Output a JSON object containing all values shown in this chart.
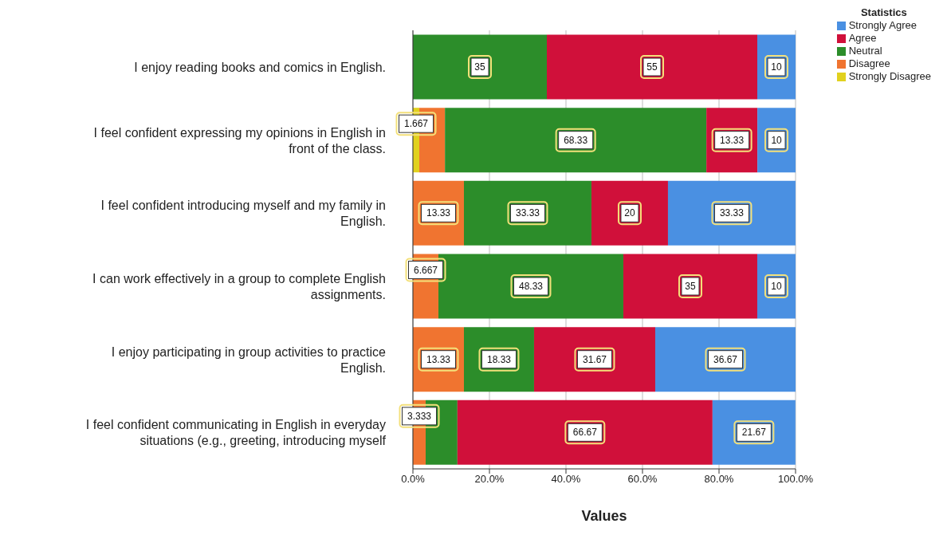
{
  "chart_data": {
    "type": "bar",
    "orientation": "horizontal",
    "stacked": true,
    "xlabel": "Values",
    "legend_title": "Statistics",
    "legend": "top right",
    "grid": "x",
    "categories": [
      "I enjoy reading books and comics in English.",
      "I feel confident expressing my opinions in English in front of the class.",
      "I feel confident introducing myself and my family in English.",
      "I can work effectively in a group to complete English assignments.",
      "I enjoy participating in group activities to practice English.",
      "I feel confident communicating in English in everyday situations (e.g., greeting, introducing myself"
    ],
    "xlim": [
      0,
      100
    ],
    "xticks": [
      {
        "value": 0,
        "label": "0.0%"
      },
      {
        "value": 20,
        "label": "20.0%"
      },
      {
        "value": 40,
        "label": "40.0%"
      },
      {
        "value": 60,
        "label": "60.0%"
      },
      {
        "value": 80,
        "label": "80.0%"
      },
      {
        "value": 100,
        "label": "100.0%"
      }
    ],
    "series": [
      {
        "name": "Strongly Disagree",
        "color": "#e1d11e",
        "values": [
          0,
          1.667,
          0,
          0,
          0,
          0
        ],
        "value_labels": [
          null,
          "1.667",
          null,
          null,
          null,
          null
        ]
      },
      {
        "name": "Disagree",
        "color": "#f07430",
        "values": [
          0,
          6.7,
          13.33,
          6.667,
          13.33,
          3.333
        ],
        "value_labels": [
          null,
          null,
          "13.33",
          "6.667",
          "13.33",
          "3.333"
        ]
      },
      {
        "name": "Neutral",
        "color": "#2c8d2a",
        "values": [
          35,
          68.33,
          33.33,
          48.33,
          18.33,
          8.3
        ],
        "value_labels": [
          "35",
          "68.33",
          "33.33",
          "48.33",
          "18.33",
          null
        ]
      },
      {
        "name": "Agree",
        "color": "#d0103a",
        "values": [
          55,
          13.33,
          20,
          35,
          31.67,
          66.67
        ],
        "value_labels": [
          "55",
          "13.33",
          "20",
          "35",
          "31.67",
          "66.67"
        ]
      },
      {
        "name": "Strongly Agree",
        "color": "#4a90e2",
        "values": [
          10,
          10,
          33.33,
          10,
          36.67,
          21.67
        ],
        "value_labels": [
          "10",
          "10",
          "33.33",
          "10",
          "36.67",
          "21.67"
        ]
      }
    ]
  }
}
